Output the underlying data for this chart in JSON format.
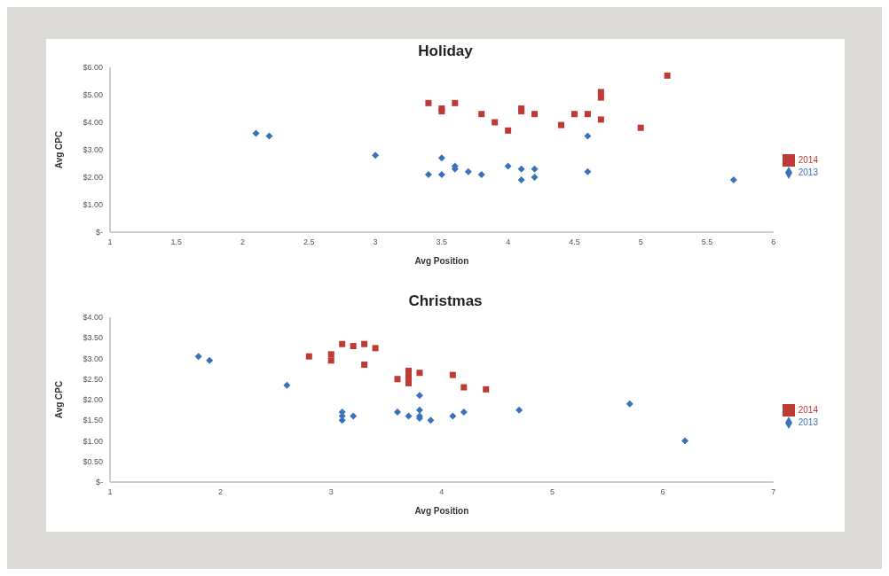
{
  "chart_data": [
    {
      "type": "scatter",
      "title": "Holiday",
      "xlabel": "Avg Position",
      "ylabel": "Avg CPC",
      "xlim": [
        1,
        6
      ],
      "xticks": [
        1,
        1.5,
        2,
        2.5,
        3,
        3.5,
        4,
        4.5,
        5,
        5.5,
        6
      ],
      "ylim": [
        0,
        6
      ],
      "yticks": [
        {
          "value": 0,
          "label": "$-"
        },
        {
          "value": 1,
          "label": "$1.00"
        },
        {
          "value": 2,
          "label": "$2.00"
        },
        {
          "value": 3,
          "label": "$3.00"
        },
        {
          "value": 4,
          "label": "$4.00"
        },
        {
          "value": 5,
          "label": "$5.00"
        },
        {
          "value": 6,
          "label": "$6.00"
        }
      ],
      "grid": false,
      "legend": "right",
      "series": [
        {
          "name": "2014",
          "color": "#be3a34",
          "marker": "square",
          "x": [
            3.4,
            3.5,
            3.5,
            3.6,
            3.8,
            3.9,
            4.0,
            4.1,
            4.1,
            4.2,
            4.4,
            4.5,
            4.6,
            4.7,
            4.7,
            4.7,
            5.0,
            5.2
          ],
          "values": [
            4.7,
            4.5,
            4.4,
            4.7,
            4.3,
            4.0,
            3.7,
            4.5,
            4.4,
            4.3,
            3.9,
            4.3,
            4.3,
            5.1,
            4.9,
            4.1,
            3.8,
            5.7
          ]
        },
        {
          "name": "2013",
          "color": "#3a72b8",
          "marker": "diamond",
          "x": [
            2.1,
            2.2,
            3.0,
            3.4,
            3.5,
            3.5,
            3.6,
            3.6,
            3.7,
            3.8,
            4.0,
            4.1,
            4.1,
            4.2,
            4.2,
            4.6,
            4.6,
            5.7
          ],
          "values": [
            3.6,
            3.5,
            2.8,
            2.1,
            2.7,
            2.1,
            2.4,
            2.3,
            2.2,
            2.1,
            2.4,
            2.3,
            1.9,
            2.3,
            2.0,
            3.5,
            2.2,
            1.9
          ]
        }
      ]
    },
    {
      "type": "scatter",
      "title": "Christmas",
      "xlabel": "Avg Position",
      "ylabel": "Avg CPC",
      "xlim": [
        1,
        7
      ],
      "xticks": [
        1,
        2,
        3,
        4,
        5,
        6,
        7
      ],
      "ylim": [
        0,
        4
      ],
      "yticks": [
        {
          "value": 0,
          "label": "$-"
        },
        {
          "value": 0.5,
          "label": "$0.50"
        },
        {
          "value": 1,
          "label": "$1.00"
        },
        {
          "value": 1.5,
          "label": "$1.50"
        },
        {
          "value": 2,
          "label": "$2.00"
        },
        {
          "value": 2.5,
          "label": "$2.50"
        },
        {
          "value": 3,
          "label": "$3.00"
        },
        {
          "value": 3.5,
          "label": "$3.50"
        },
        {
          "value": 4,
          "label": "$4.00"
        }
      ],
      "grid": false,
      "legend": "right",
      "series": [
        {
          "name": "2014",
          "color": "#be3a34",
          "marker": "square",
          "x": [
            2.8,
            3.0,
            3.0,
            3.1,
            3.2,
            3.3,
            3.3,
            3.4,
            3.6,
            3.7,
            3.7,
            3.7,
            3.8,
            4.1,
            4.2,
            4.4
          ],
          "values": [
            3.05,
            3.1,
            2.95,
            3.35,
            3.3,
            3.35,
            2.85,
            3.25,
            2.5,
            2.7,
            2.55,
            2.4,
            2.65,
            2.6,
            2.3,
            2.25
          ]
        },
        {
          "name": "2013",
          "color": "#3a72b8",
          "marker": "diamond",
          "x": [
            1.8,
            1.9,
            2.6,
            3.1,
            3.1,
            3.1,
            3.2,
            3.6,
            3.7,
            3.8,
            3.8,
            3.8,
            3.8,
            3.9,
            4.1,
            4.2,
            4.7,
            5.7,
            6.2
          ],
          "values": [
            3.05,
            2.95,
            2.35,
            1.7,
            1.6,
            1.5,
            1.6,
            1.7,
            1.6,
            2.1,
            1.75,
            1.6,
            1.55,
            1.5,
            1.6,
            1.7,
            1.75,
            1.9,
            1.0
          ]
        }
      ]
    }
  ]
}
